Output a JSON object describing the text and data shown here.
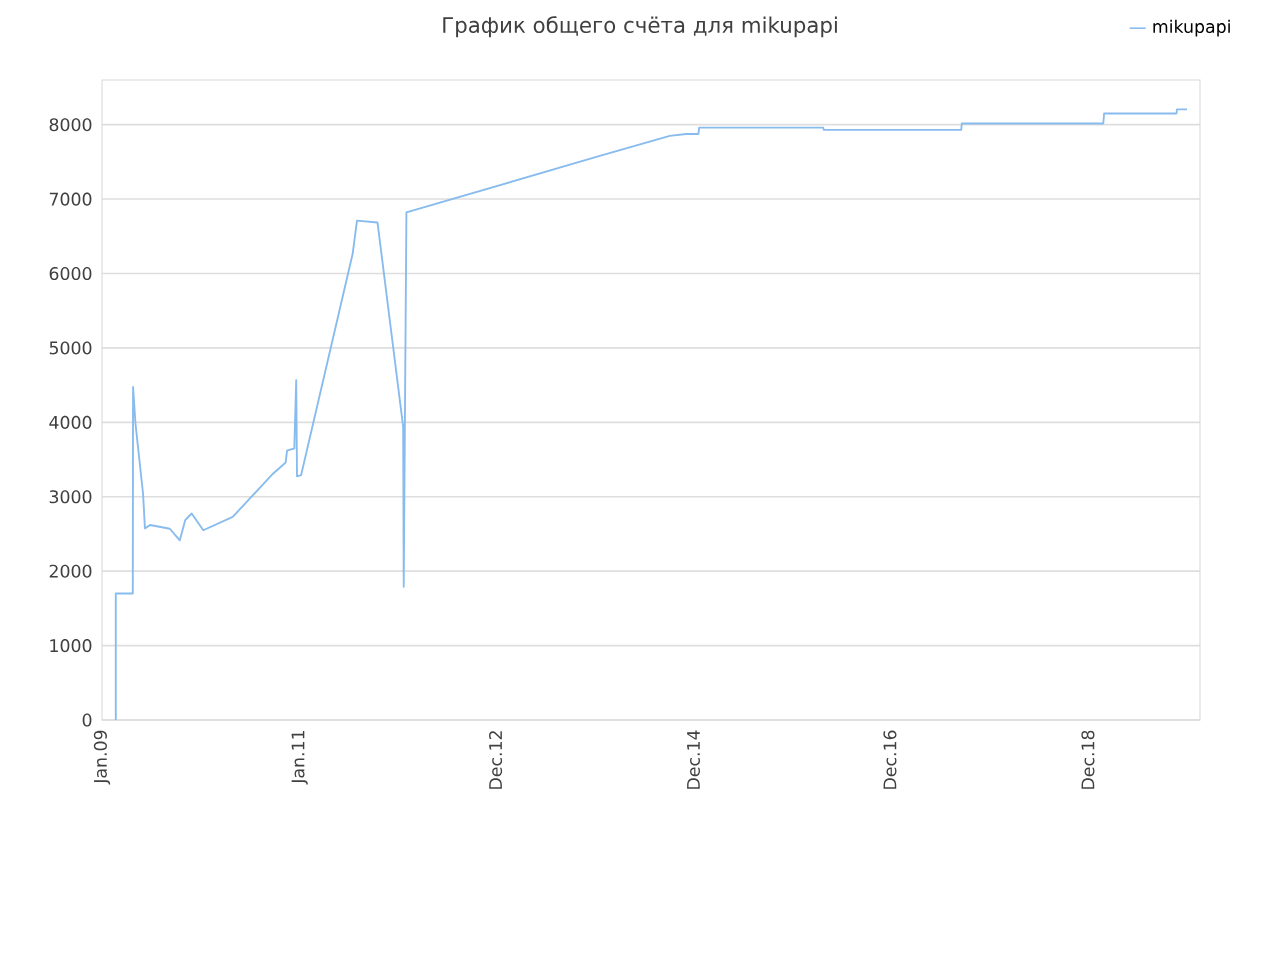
{
  "chart_data": {
    "type": "line",
    "title": "График общего счёта для mikupapi",
    "x": [
      "2009-02-21",
      "2009-02-21",
      "2009-04-25",
      "2009-04-26",
      "2009-05-05",
      "2009-06-02",
      "2009-06-09",
      "2009-06-28",
      "2009-09-09",
      "2009-10-16",
      "2009-11-05",
      "2009-11-29",
      "2010-01-11",
      "2010-04-30",
      "2010-09-26",
      "2010-11-12",
      "2010-11-17",
      "2010-12-14",
      "2010-12-21",
      "2010-12-24",
      "2011-01-08",
      "2011-07-18",
      "2011-08-03",
      "2011-10-18",
      "2012-01-21",
      "2012-01-23",
      "2012-02-02",
      "2014-01-18",
      "2014-10-04",
      "2014-12-04",
      "2015-01-18",
      "2015-01-21",
      "2016-04-24",
      "2016-04-26",
      "2017-09-17",
      "2017-09-19",
      "2019-02-25",
      "2019-02-28",
      "2019-11-23",
      "2019-11-25",
      "2020-01-01"
    ],
    "series": [
      {
        "name": "mikupapi",
        "color": "#88bbee",
        "values": [
          0,
          1700,
          1700,
          4475,
          3980,
          3040,
          2575,
          2620,
          2570,
          2415,
          2685,
          2775,
          2550,
          2730,
          3310,
          3460,
          3620,
          3650,
          4565,
          3275,
          3290,
          6265,
          6710,
          6685,
          3940,
          1790,
          6820,
          7580,
          7850,
          7875,
          7875,
          7960,
          7960,
          7930,
          7930,
          8015,
          8015,
          8150,
          8150,
          8205,
          8205
        ]
      }
    ],
    "xlim": [
      "2009-01-01",
      "2020-02-18"
    ],
    "xticks": [
      {
        "value": "2009-01-01",
        "label": "Jan.09"
      },
      {
        "value": "2011-01-03",
        "label": "Jan.11"
      },
      {
        "value": "2012-12-28",
        "label": "Dec.12"
      },
      {
        "value": "2014-12-31",
        "label": "Dec.14"
      },
      {
        "value": "2016-12-27",
        "label": "Dec.16"
      },
      {
        "value": "2018-12-30",
        "label": "Dec.18"
      }
    ],
    "ylim": [
      0,
      8600
    ],
    "yticks": [
      0,
      1000,
      2000,
      3000,
      4000,
      5000,
      6000,
      7000,
      8000
    ],
    "grid": "y",
    "legend": "top right"
  }
}
